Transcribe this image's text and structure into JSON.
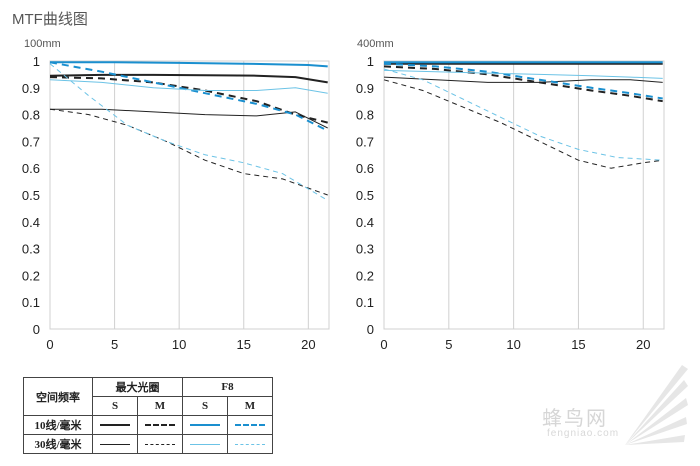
{
  "title": "MTF曲线图",
  "colors": {
    "black": "#222222",
    "blue10": "#1a8fcf",
    "blue30": "#6cc3e6",
    "grid": "#d0d0d0"
  },
  "chart_data": [
    {
      "type": "line",
      "subtitle": "100mm",
      "xlim": [
        0,
        21.6
      ],
      "ylim": [
        0,
        1
      ],
      "xticks": [
        0,
        5,
        10,
        15,
        20
      ],
      "yticks": [
        0,
        0.1,
        0.2,
        0.3,
        0.4,
        0.5,
        0.6,
        0.7,
        0.8,
        0.9,
        1
      ],
      "ytick_labels": [
        "0",
        "0.1",
        "0.2",
        "0.3",
        "0.4",
        "0.5",
        "0.6",
        "0.7",
        "0.8",
        "0.9",
        "1"
      ],
      "grid": true,
      "series": [
        {
          "aperture": "max",
          "freq": "10",
          "orient": "S",
          "x": [
            0,
            4,
            8,
            12,
            16,
            19,
            21.5
          ],
          "y": [
            0.945,
            0.948,
            0.948,
            0.947,
            0.945,
            0.94,
            0.92
          ]
        },
        {
          "aperture": "max",
          "freq": "10",
          "orient": "M",
          "x": [
            0,
            4,
            8,
            12,
            16,
            19,
            21.5
          ],
          "y": [
            0.94,
            0.935,
            0.92,
            0.89,
            0.85,
            0.8,
            0.77
          ]
        },
        {
          "aperture": "max",
          "freq": "30",
          "orient": "S",
          "x": [
            0,
            4,
            8,
            12,
            16,
            19,
            21.5
          ],
          "y": [
            0.82,
            0.82,
            0.81,
            0.8,
            0.795,
            0.81,
            0.75
          ]
        },
        {
          "aperture": "max",
          "freq": "30",
          "orient": "M",
          "x": [
            0,
            3,
            6,
            9,
            12,
            15,
            18,
            21.5
          ],
          "y": [
            0.82,
            0.8,
            0.76,
            0.7,
            0.63,
            0.58,
            0.56,
            0.5
          ]
        },
        {
          "aperture": "F8",
          "freq": "10",
          "orient": "S",
          "x": [
            0,
            5,
            10,
            15,
            20,
            21.5
          ],
          "y": [
            0.995,
            0.995,
            0.993,
            0.99,
            0.985,
            0.98
          ]
        },
        {
          "aperture": "F8",
          "freq": "10",
          "orient": "M",
          "x": [
            0,
            4,
            8,
            12,
            16,
            19,
            21.5
          ],
          "y": [
            0.995,
            0.96,
            0.92,
            0.88,
            0.84,
            0.8,
            0.74
          ]
        },
        {
          "aperture": "F8",
          "freq": "30",
          "orient": "S",
          "x": [
            0,
            4,
            8,
            12,
            16,
            19,
            21.5
          ],
          "y": [
            0.93,
            0.92,
            0.9,
            0.89,
            0.89,
            0.9,
            0.88
          ]
        },
        {
          "aperture": "F8",
          "freq": "30",
          "orient": "M",
          "x": [
            0,
            3,
            6,
            9,
            12,
            15,
            18,
            21.5
          ],
          "y": [
            0.99,
            0.87,
            0.76,
            0.7,
            0.65,
            0.62,
            0.58,
            0.48
          ]
        }
      ]
    },
    {
      "type": "line",
      "subtitle": "400mm",
      "xlim": [
        0,
        21.6
      ],
      "ylim": [
        0,
        1
      ],
      "xticks": [
        0,
        5,
        10,
        15,
        20
      ],
      "yticks": [
        0,
        0.1,
        0.2,
        0.3,
        0.4,
        0.5,
        0.6,
        0.7,
        0.8,
        0.9,
        1
      ],
      "ytick_labels": [
        "0",
        "0.1",
        "0.2",
        "0.3",
        "0.4",
        "0.5",
        "0.6",
        "0.7",
        "0.8",
        "0.9",
        "1"
      ],
      "grid": true,
      "series": [
        {
          "aperture": "max",
          "freq": "10",
          "orient": "S",
          "x": [
            0,
            5,
            10,
            15,
            20,
            21.5
          ],
          "y": [
            0.99,
            0.99,
            0.99,
            0.99,
            0.99,
            0.99
          ]
        },
        {
          "aperture": "max",
          "freq": "10",
          "orient": "M",
          "x": [
            0,
            4,
            8,
            12,
            16,
            19,
            21.5
          ],
          "y": [
            0.98,
            0.97,
            0.95,
            0.92,
            0.89,
            0.87,
            0.85
          ]
        },
        {
          "aperture": "max",
          "freq": "30",
          "orient": "S",
          "x": [
            0,
            4,
            8,
            12,
            16,
            19,
            21.5
          ],
          "y": [
            0.94,
            0.93,
            0.92,
            0.92,
            0.93,
            0.93,
            0.92
          ]
        },
        {
          "aperture": "max",
          "freq": "30",
          "orient": "M",
          "x": [
            0,
            3,
            6,
            9,
            12,
            15,
            17.5,
            20,
            21.5
          ],
          "y": [
            0.93,
            0.89,
            0.83,
            0.77,
            0.7,
            0.63,
            0.6,
            0.62,
            0.63
          ]
        },
        {
          "aperture": "F8",
          "freq": "10",
          "orient": "S",
          "x": [
            0,
            5,
            10,
            15,
            20,
            21.5
          ],
          "y": [
            0.995,
            0.995,
            0.995,
            0.995,
            0.995,
            0.995
          ]
        },
        {
          "aperture": "F8",
          "freq": "10",
          "orient": "M",
          "x": [
            0,
            4,
            8,
            12,
            16,
            19,
            21.5
          ],
          "y": [
            0.99,
            0.98,
            0.96,
            0.93,
            0.9,
            0.88,
            0.86
          ]
        },
        {
          "aperture": "F8",
          "freq": "30",
          "orient": "S",
          "x": [
            0,
            4,
            8,
            12,
            16,
            19,
            21.5
          ],
          "y": [
            0.965,
            0.96,
            0.955,
            0.95,
            0.945,
            0.94,
            0.935
          ]
        },
        {
          "aperture": "F8",
          "freq": "30",
          "orient": "M",
          "x": [
            0,
            3,
            6,
            9,
            12,
            15,
            18,
            21.5
          ],
          "y": [
            0.97,
            0.93,
            0.86,
            0.79,
            0.72,
            0.67,
            0.64,
            0.63
          ]
        }
      ]
    }
  ],
  "legend": {
    "header": "空间频率",
    "group_max": "最大光圈",
    "group_f8": "F8",
    "s": "S",
    "m": "M",
    "row10": "10线/毫米",
    "row30": "30线/毫米"
  },
  "watermark": {
    "text": "蜂鸟网",
    "sub": "fengniao.com"
  }
}
